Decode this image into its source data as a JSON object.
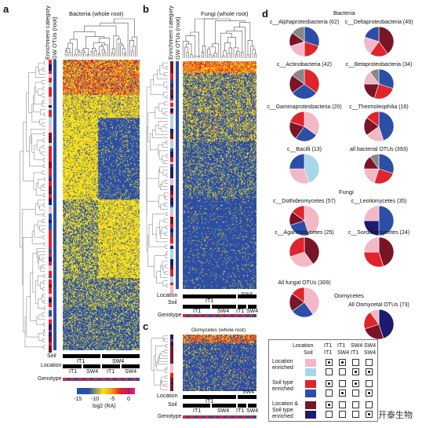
{
  "panels": {
    "a": {
      "letter": "a",
      "title": "Bacteria (whole root)",
      "col1": "Enrichment category",
      "col2": "GW OTUs (root)",
      "rows": [
        "Soil",
        "Location",
        "Genotype"
      ],
      "soil_labels": [
        "IT1",
        "SW4"
      ],
      "location_labels": [
        "IT1",
        "SW4",
        "IT1",
        "SW4"
      ]
    },
    "b": {
      "letter": "b",
      "title": "Fungi (whole root)",
      "col1": "Enrichment category",
      "col2": "GW OTUs (root)",
      "rows": [
        "Location",
        "Soil",
        "Genotype"
      ],
      "loc_labels": [
        "IT1",
        "SW4"
      ],
      "soil_labels": [
        "IT1",
        "SW4",
        "IT1",
        "SW4"
      ]
    },
    "c": {
      "letter": "c",
      "title": "Oomycetes (whole root)",
      "rows": [
        "Location",
        "Soil",
        "Genotype"
      ],
      "loc_labels": [
        "IT1",
        "SW4"
      ],
      "soil_labels": [
        "IT1",
        "SW4",
        "IT1",
        "SW4"
      ]
    },
    "d": {
      "letter": "d"
    }
  },
  "colorbar": {
    "ticks": [
      "-15",
      "-10",
      "-5",
      "0"
    ],
    "label": "log2 (RA)"
  },
  "pies": {
    "bacteria_header": "Bacteria",
    "bacteria": [
      {
        "name": "c__Alphaproteobacteria (62)",
        "slices": [
          {
            "v": 0.3,
            "c": "#2b4fa6"
          },
          {
            "v": 0.2,
            "c": "#e0242b"
          },
          {
            "v": 0.2,
            "c": "#f2b8c6"
          },
          {
            "v": 0.15,
            "c": "#7a1526"
          },
          {
            "v": 0.15,
            "c": "#888888"
          }
        ]
      },
      {
        "name": "c__Deltaproteobacteria (49)",
        "slices": [
          {
            "v": 0.4,
            "c": "#7a1526"
          },
          {
            "v": 0.2,
            "c": "#e0242b"
          },
          {
            "v": 0.2,
            "c": "#f2b8c6"
          },
          {
            "v": 0.2,
            "c": "#2b4fa6"
          }
        ]
      },
      {
        "name": "c__Actinobacteria (42)",
        "slices": [
          {
            "v": 0.35,
            "c": "#e0242b"
          },
          {
            "v": 0.3,
            "c": "#2b4fa6"
          },
          {
            "v": 0.2,
            "c": "#7a1526"
          },
          {
            "v": 0.15,
            "c": "#888888"
          }
        ]
      },
      {
        "name": "c__Betaproteobacteria (34)",
        "slices": [
          {
            "v": 0.3,
            "c": "#2b4fa6"
          },
          {
            "v": 0.25,
            "c": "#e0242b"
          },
          {
            "v": 0.2,
            "c": "#7a1526"
          },
          {
            "v": 0.15,
            "c": "#f2b8c6"
          },
          {
            "v": 0.1,
            "c": "#888888"
          }
        ]
      },
      {
        "name": "c__Gammaproteobacteria (20)",
        "slices": [
          {
            "v": 0.35,
            "c": "#f2b8c6"
          },
          {
            "v": 0.25,
            "c": "#2b4fa6"
          },
          {
            "v": 0.2,
            "c": "#7a1526"
          },
          {
            "v": 0.2,
            "c": "#e0242b"
          }
        ]
      },
      {
        "name": "c__Thermoleophilia (16)",
        "slices": [
          {
            "v": 0.45,
            "c": "#2b4fa6"
          },
          {
            "v": 0.2,
            "c": "#f2b8c6"
          },
          {
            "v": 0.2,
            "c": "#7a1526"
          },
          {
            "v": 0.15,
            "c": "#e0242b"
          }
        ]
      },
      {
        "name": "c__Bacilli (13)",
        "slices": [
          {
            "v": 0.45,
            "c": "#a9d7e8"
          },
          {
            "v": 0.3,
            "c": "#f2b8c6"
          },
          {
            "v": 0.25,
            "c": "#2b4fa6"
          }
        ]
      },
      {
        "name": "all bacterial OTUs (393)",
        "slices": [
          {
            "v": 0.3,
            "c": "#2b4fa6"
          },
          {
            "v": 0.25,
            "c": "#e0242b"
          },
          {
            "v": 0.2,
            "c": "#f2b8c6"
          },
          {
            "v": 0.15,
            "c": "#7a1526"
          },
          {
            "v": 0.1,
            "c": "#888888"
          }
        ]
      }
    ],
    "fungi_header": "Fungi",
    "fungi": [
      {
        "name": "c__Dothideomycetes (57)",
        "slices": [
          {
            "v": 0.45,
            "c": "#f2b8c6"
          },
          {
            "v": 0.25,
            "c": "#2b4fa6"
          },
          {
            "v": 0.15,
            "c": "#7a1526"
          },
          {
            "v": 0.15,
            "c": "#e0242b"
          }
        ]
      },
      {
        "name": "c__Leotiomycetes (35)",
        "slices": [
          {
            "v": 0.5,
            "c": "#2b4fa6"
          },
          {
            "v": 0.25,
            "c": "#1c1c6e"
          },
          {
            "v": 0.25,
            "c": "#f2b8c6"
          }
        ]
      },
      {
        "name": "c__Agaricomycetes (25)",
        "slices": [
          {
            "v": 0.4,
            "c": "#7a1526"
          },
          {
            "v": 0.3,
            "c": "#f2b8c6"
          },
          {
            "v": 0.3,
            "c": "#e0242b"
          }
        ]
      },
      {
        "name": "c__Sordariomycetes (24)",
        "slices": [
          {
            "v": 0.45,
            "c": "#7a1526"
          },
          {
            "v": 0.3,
            "c": "#e0242b"
          },
          {
            "v": 0.25,
            "c": "#f2b8c6"
          }
        ]
      },
      {
        "name": "All fungal OTUs (309)",
        "slices": [
          {
            "v": 0.4,
            "c": "#f2b8c6"
          },
          {
            "v": 0.25,
            "c": "#2b4fa6"
          },
          {
            "v": 0.2,
            "c": "#7a1526"
          },
          {
            "v": 0.15,
            "c": "#e0242b"
          }
        ]
      }
    ],
    "oomycetes_header": "Oomycetes",
    "oomycetes": [
      {
        "name": "All Oomycetal OTUs (73)",
        "slices": [
          {
            "v": 0.45,
            "c": "#1c1c6e"
          },
          {
            "v": 0.25,
            "c": "#7a1526"
          },
          {
            "v": 0.2,
            "c": "#e0242b"
          },
          {
            "v": 0.1,
            "c": "#f2b8c6"
          }
        ]
      }
    ]
  },
  "legend": {
    "location_label": "Location",
    "soil_label": "Soil",
    "columns": [
      {
        "loc": "IT1",
        "soil": "IT1"
      },
      {
        "loc": "IT1",
        "soil": "SW4"
      },
      {
        "loc": "SW4",
        "soil": "IT1"
      },
      {
        "loc": "SW4",
        "soil": "SW4"
      }
    ],
    "rows": [
      {
        "label": "Location enriched",
        "colors": [
          "#f2b8c6",
          "#a9d7e8"
        ],
        "dots": [
          [
            1,
            1,
            0,
            0
          ],
          [
            0,
            0,
            1,
            1
          ]
        ]
      },
      {
        "label": "Soil type enriched",
        "colors": [
          "#e0242b",
          "#2b4fa6"
        ],
        "dots": [
          [
            1,
            0,
            1,
            0
          ],
          [
            0,
            1,
            0,
            1
          ]
        ]
      },
      {
        "label": "Location & Soil type enriched",
        "colors": [
          "#7a1526",
          "#1c1c6e"
        ],
        "dots": [
          [
            1,
            0,
            0,
            0
          ],
          [
            0,
            0,
            0,
            1
          ]
        ]
      }
    ]
  },
  "watermark": "开泰生物"
}
